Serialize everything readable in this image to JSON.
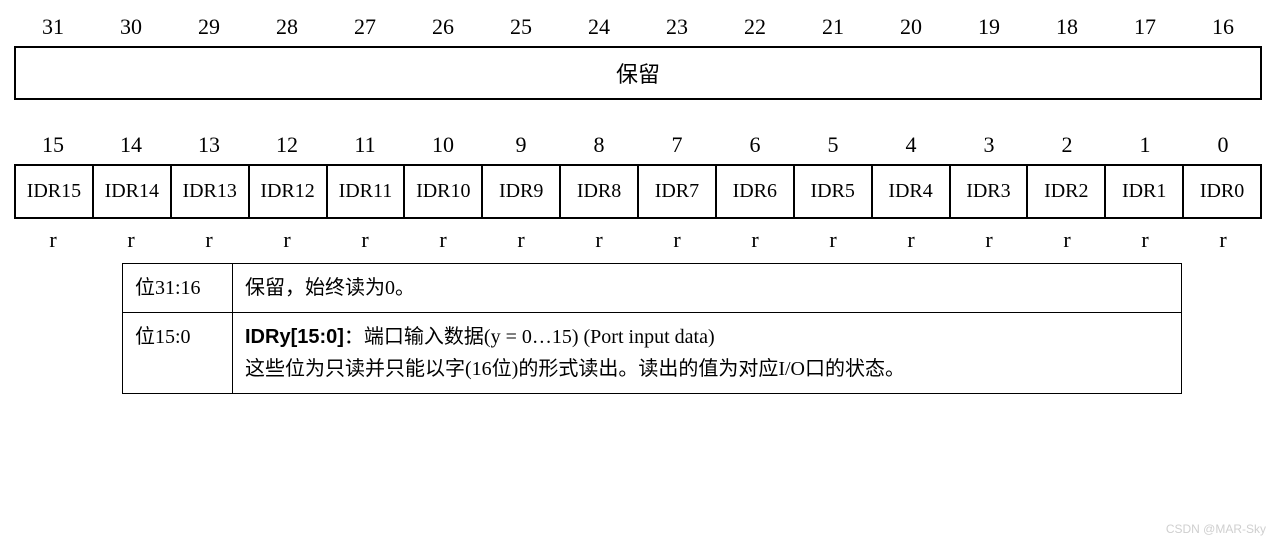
{
  "upper_bits": [
    "31",
    "30",
    "29",
    "28",
    "27",
    "26",
    "25",
    "24",
    "23",
    "22",
    "21",
    "20",
    "19",
    "18",
    "17",
    "16"
  ],
  "reserved_label": "保留",
  "lower_bits": [
    "15",
    "14",
    "13",
    "12",
    "11",
    "10",
    "9",
    "8",
    "7",
    "6",
    "5",
    "4",
    "3",
    "2",
    "1",
    "0"
  ],
  "fields": [
    "IDR15",
    "IDR14",
    "IDR13",
    "IDR12",
    "IDR11",
    "IDR10",
    "IDR9",
    "IDR8",
    "IDR7",
    "IDR6",
    "IDR5",
    "IDR4",
    "IDR3",
    "IDR2",
    "IDR1",
    "IDR0"
  ],
  "access": [
    "r",
    "r",
    "r",
    "r",
    "r",
    "r",
    "r",
    "r",
    "r",
    "r",
    "r",
    "r",
    "r",
    "r",
    "r",
    "r"
  ],
  "desc": [
    {
      "key": "位31:16",
      "text": "保留，始终读为0。"
    },
    {
      "key": "位15:0",
      "bold": "IDRy[15:0]",
      "sep": "：",
      "line1": "端口输入数据(y = 0…15) (Port input data)",
      "line2": "这些位为只读并只能以字(16位)的形式读出。读出的值为对应I/O口的状态。"
    }
  ],
  "watermark": "CSDN @MAR-Sky",
  "colors": {
    "border": "#000000",
    "text": "#000000",
    "bg": "#ffffff",
    "watermark": "#cfcfcf"
  }
}
